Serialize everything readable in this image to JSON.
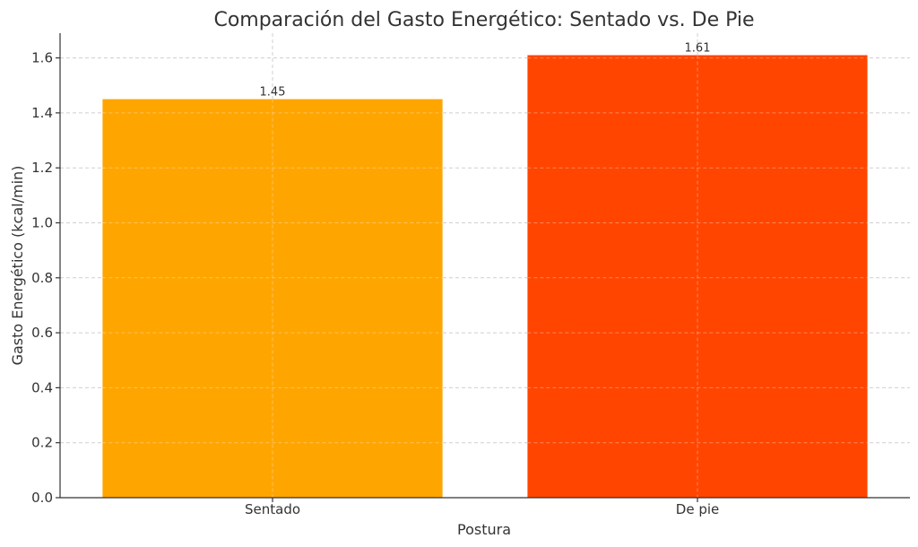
{
  "chart_data": {
    "type": "bar",
    "title": "Comparación del Gasto Energético: Sentado vs. De Pie",
    "xlabel": "Postura",
    "ylabel": "Gasto Energético (kcal/min)",
    "categories": [
      "Sentado",
      "De pie"
    ],
    "values": [
      1.45,
      1.61
    ],
    "value_labels": [
      "1.45",
      "1.61"
    ],
    "colors": [
      "#FFA500",
      "#FF4500"
    ],
    "ylim": [
      0,
      1.69
    ],
    "yticks": [
      0.0,
      0.2,
      0.4,
      0.6,
      0.8,
      1.0,
      1.2,
      1.4,
      1.6
    ],
    "ytick_labels": [
      "0.0",
      "0.2",
      "0.4",
      "0.6",
      "0.8",
      "1.0",
      "1.2",
      "1.4",
      "1.6"
    ],
    "grid": true
  }
}
